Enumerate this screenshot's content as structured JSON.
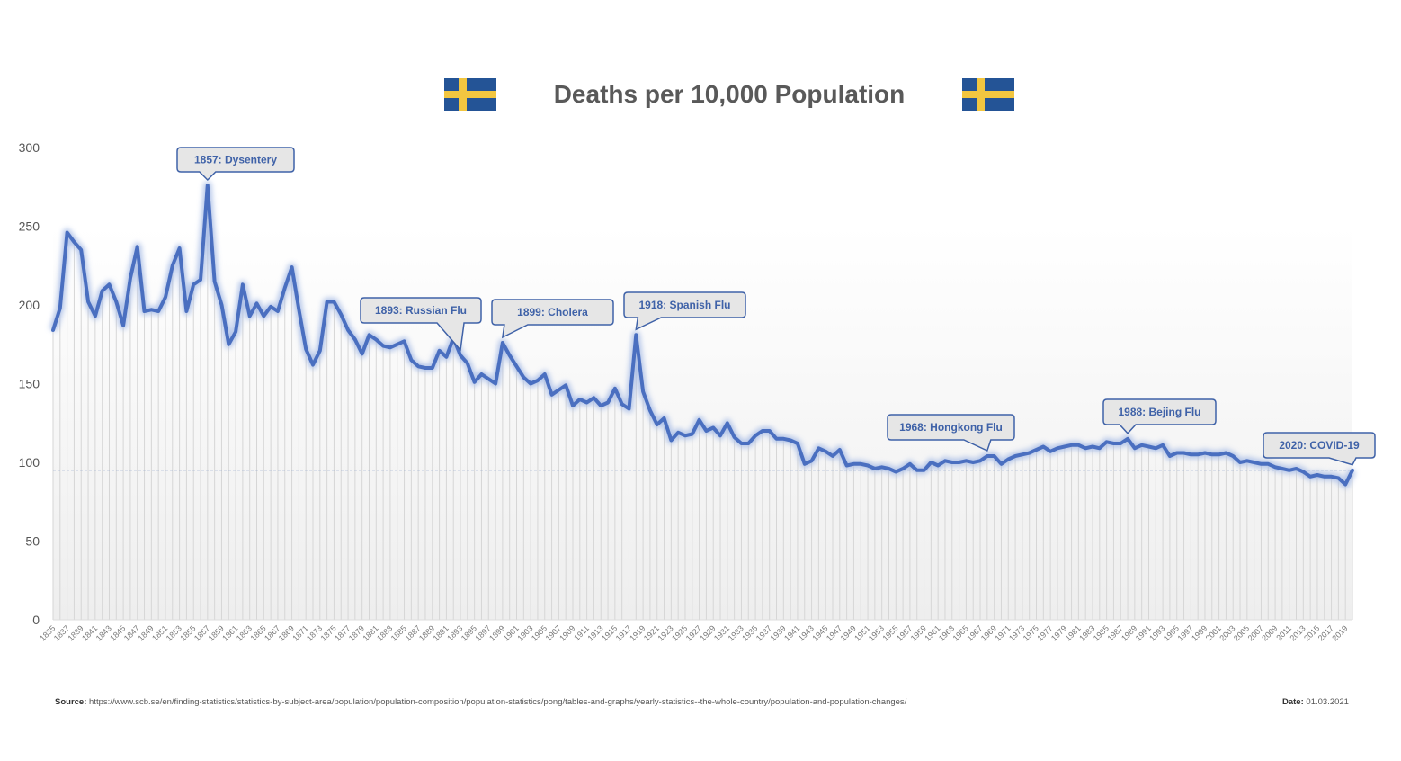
{
  "header": {
    "title": "Deaths per 10,000 Population",
    "flag_left": "sweden-flag",
    "flag_right": "sweden-flag",
    "flag_colors": {
      "blue": "#245496",
      "yellow": "#f2c640"
    }
  },
  "footer": {
    "source_label": "Source:",
    "source_text": "https://www.scb.se/en/finding-statistics/statistics-by-subject-area/population/population-composition/population-statistics/pong/tables-and-graphs/yearly-statistics--the-whole-country/population-and-population-changes/",
    "date_label": "Date:",
    "date_text": "01.03.2021"
  },
  "chart_data": {
    "type": "line",
    "title": "Deaths per 10,000 Population",
    "xlabel": "",
    "ylabel": "",
    "ylim": [
      0,
      300
    ],
    "yticks": [
      0,
      50,
      100,
      150,
      200,
      250,
      300
    ],
    "x_start": 1835,
    "x_end": 2020,
    "xtick_step": 2,
    "grid": "vertical per-year bars (light gray)",
    "line_color": "#4a6fc0",
    "reference_line": {
      "value": 95,
      "style": "dashed",
      "color": "#8aa0c8"
    },
    "series": [
      {
        "name": "Deaths per 10,000",
        "values": [
          184,
          198,
          246,
          240,
          235,
          202,
          193,
          209,
          213,
          202,
          187,
          217,
          237,
          196,
          197,
          196,
          205,
          225,
          236,
          196,
          213,
          216,
          276,
          215,
          200,
          175,
          183,
          213,
          193,
          201,
          193,
          199,
          196,
          211,
          224,
          197,
          172,
          162,
          171,
          202,
          202,
          194,
          184,
          178,
          169,
          181,
          178,
          174,
          173,
          175,
          177,
          165,
          161,
          160,
          160,
          171,
          167,
          179,
          168,
          163,
          151,
          156,
          153,
          150,
          176,
          168,
          161,
          154,
          150,
          152,
          156,
          143,
          146,
          149,
          136,
          140,
          138,
          141,
          136,
          138,
          147,
          137,
          134,
          181,
          145,
          133,
          124,
          128,
          114,
          119,
          117,
          118,
          127,
          120,
          122,
          117,
          125,
          116,
          112,
          112,
          117,
          120,
          120,
          115,
          115,
          114,
          112,
          99,
          101,
          109,
          107,
          104,
          108,
          98,
          99,
          99,
          98,
          96,
          97,
          96,
          94,
          96,
          99,
          95,
          95,
          100,
          98,
          101,
          100,
          100,
          101,
          100,
          101,
          104,
          104,
          99,
          102,
          104,
          105,
          106,
          108,
          110,
          107,
          109,
          110,
          111,
          111,
          109,
          110,
          109,
          113,
          112,
          112,
          115,
          109,
          111,
          110,
          109,
          111,
          104,
          106,
          106,
          105,
          105,
          106,
          105,
          105,
          106,
          104,
          100,
          101,
          100,
          99,
          99,
          97,
          96,
          95,
          96,
          94,
          91,
          92,
          91,
          91,
          90,
          86,
          95
        ]
      }
    ],
    "annotations": [
      {
        "year": 1857,
        "label": "1857: Dysentery"
      },
      {
        "year": 1893,
        "label": "1893: Russian Flu"
      },
      {
        "year": 1899,
        "label": "1899: Cholera"
      },
      {
        "year": 1918,
        "label": "1918: Spanish Flu"
      },
      {
        "year": 1968,
        "label": "1968: Hongkong Flu"
      },
      {
        "year": 1988,
        "label": "1988: Bejing Flu"
      },
      {
        "year": 2020,
        "label": "2020: COVID-19"
      }
    ]
  }
}
